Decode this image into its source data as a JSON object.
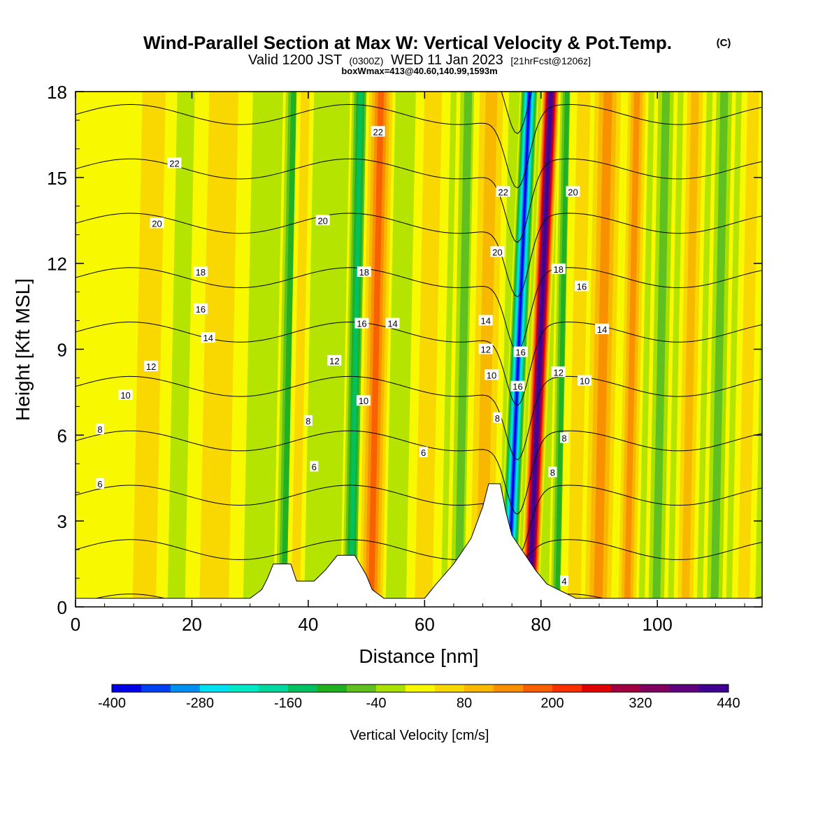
{
  "titles": {
    "main": "Wind-Parallel Section at Max W: Vertical Velocity & Pot.Temp.",
    "main_suffix": "(C)",
    "valid_prefix": "Valid 1200 JST",
    "valid_zulu": "(0300Z)",
    "valid_date": "WED 11 Jan 2023",
    "valid_fcst": "[21hrFcst@1206z]",
    "box_info": "boxWmax=413@40.60,140.99,1593m"
  },
  "axes": {
    "xlabel": "Distance [nm]",
    "ylabel": "Height [Kft MSL]",
    "xlim": [
      0,
      118
    ],
    "ylim": [
      0,
      18
    ],
    "xticks": [
      "0",
      "20",
      "40",
      "60",
      "80",
      "100"
    ],
    "yticks": [
      "0",
      "3",
      "6",
      "9",
      "12",
      "15",
      "18"
    ]
  },
  "colorbar": {
    "title": "Vertical Velocity [cm/s]",
    "labels": [
      "-400",
      "-280",
      "-160",
      "-40",
      "80",
      "200",
      "320",
      "440"
    ],
    "colors": [
      "#0000e6",
      "#0040f0",
      "#0090f0",
      "#00e0f0",
      "#00e8c8",
      "#00d8a0",
      "#00c060",
      "#20b020",
      "#60c020",
      "#a8e000",
      "#f8f800",
      "#f8d800",
      "#f8b800",
      "#f89000",
      "#f86000",
      "#f83000",
      "#e00000",
      "#a00040",
      "#800060",
      "#600080",
      "#400090"
    ]
  },
  "chart_data": {
    "type": "heatmap",
    "field": "Vertical Velocity [cm/s]",
    "contours": "Potential Temperature [C]",
    "xlim": [
      0,
      118
    ],
    "ylim": [
      0,
      18
    ],
    "terrain_kft": [
      [
        0,
        0
      ],
      [
        30,
        0
      ],
      [
        32,
        0.3
      ],
      [
        33,
        0.7
      ],
      [
        34,
        1.2
      ],
      [
        37,
        1.2
      ],
      [
        38,
        0.6
      ],
      [
        41,
        0.6
      ],
      [
        43,
        1.0
      ],
      [
        45,
        1.5
      ],
      [
        48,
        1.5
      ],
      [
        50,
        0.8
      ],
      [
        51,
        0.3
      ],
      [
        53,
        0
      ],
      [
        60,
        0
      ],
      [
        62,
        0.5
      ],
      [
        65,
        1.2
      ],
      [
        68,
        2.1
      ],
      [
        70,
        3.2
      ],
      [
        71,
        4.0
      ],
      [
        73,
        4.0
      ],
      [
        74,
        3.0
      ],
      [
        75,
        2.2
      ],
      [
        77,
        1.6
      ],
      [
        79,
        1.0
      ],
      [
        81,
        0.5
      ],
      [
        83,
        0.3
      ],
      [
        86,
        0
      ],
      [
        118,
        0
      ]
    ],
    "w_bands": [
      {
        "x": 4,
        "w": 6,
        "value": 0
      },
      {
        "x": 12,
        "w": 4,
        "value": 20
      },
      {
        "x": 24,
        "w": 5,
        "value": 20
      },
      {
        "x": 36,
        "w": 1.8,
        "value": -120
      },
      {
        "x": 38,
        "w": 1.5,
        "value": 40
      },
      {
        "x": 47.5,
        "w": 1.8,
        "value": -140
      },
      {
        "x": 51,
        "w": 2.5,
        "value": 140
      },
      {
        "x": 60,
        "w": 3,
        "value": 40
      },
      {
        "x": 66,
        "w": 2,
        "value": -60
      },
      {
        "x": 70,
        "w": 3,
        "value": 80
      },
      {
        "x": 74.5,
        "w": 1.6,
        "value": -400,
        "tilt": true
      },
      {
        "x": 78.2,
        "w": 1.6,
        "value": 413,
        "tilt": true
      },
      {
        "x": 83,
        "w": 1.5,
        "value": -120
      },
      {
        "x": 86,
        "w": 2.5,
        "value": 40
      },
      {
        "x": 90,
        "w": 3,
        "value": 120
      },
      {
        "x": 95,
        "w": 2,
        "value": 100
      },
      {
        "x": 100,
        "w": 2,
        "value": -80
      },
      {
        "x": 105,
        "w": 2,
        "value": 80
      },
      {
        "x": 110,
        "w": 2,
        "value": -60
      },
      {
        "x": 115,
        "w": 2,
        "value": 20
      }
    ],
    "theta_labels": [
      {
        "x": 4.2,
        "y": 4.3,
        "text": "6"
      },
      {
        "x": 4.2,
        "y": 6.2,
        "text": "8"
      },
      {
        "x": 8.6,
        "y": 7.4,
        "text": "10"
      },
      {
        "x": 13,
        "y": 8.4,
        "text": "12"
      },
      {
        "x": 22.8,
        "y": 9.4,
        "text": "14"
      },
      {
        "x": 21.5,
        "y": 10.4,
        "text": "16"
      },
      {
        "x": 21.5,
        "y": 11.7,
        "text": "18"
      },
      {
        "x": 14,
        "y": 13.4,
        "text": "20"
      },
      {
        "x": 17,
        "y": 15.5,
        "text": "22"
      },
      {
        "x": 41,
        "y": 4.9,
        "text": "6"
      },
      {
        "x": 40,
        "y": 6.5,
        "text": "8"
      },
      {
        "x": 49.5,
        "y": 7.2,
        "text": "10"
      },
      {
        "x": 44.5,
        "y": 8.6,
        "text": "12"
      },
      {
        "x": 54.5,
        "y": 9.9,
        "text": "14"
      },
      {
        "x": 49.2,
        "y": 9.9,
        "text": "16"
      },
      {
        "x": 49.6,
        "y": 11.7,
        "text": "18"
      },
      {
        "x": 42.5,
        "y": 13.5,
        "text": "20"
      },
      {
        "x": 52,
        "y": 16.6,
        "text": "22"
      },
      {
        "x": 59.8,
        "y": 5.4,
        "text": "6"
      },
      {
        "x": 72.5,
        "y": 6.6,
        "text": "8"
      },
      {
        "x": 71.5,
        "y": 8.1,
        "text": "10"
      },
      {
        "x": 70.5,
        "y": 9.0,
        "text": "12"
      },
      {
        "x": 70.5,
        "y": 10.0,
        "text": "14"
      },
      {
        "x": 76,
        "y": 7.7,
        "text": "16"
      },
      {
        "x": 76.5,
        "y": 8.9,
        "text": "16"
      },
      {
        "x": 72.5,
        "y": 12.4,
        "text": "20"
      },
      {
        "x": 73.5,
        "y": 14.5,
        "text": "22"
      },
      {
        "x": 84,
        "y": 0.9,
        "text": "4"
      },
      {
        "x": 82,
        "y": 4.7,
        "text": "8"
      },
      {
        "x": 84,
        "y": 5.9,
        "text": "8"
      },
      {
        "x": 83,
        "y": 8.2,
        "text": "12"
      },
      {
        "x": 87.5,
        "y": 7.9,
        "text": "10"
      },
      {
        "x": 90.5,
        "y": 9.7,
        "text": "14"
      },
      {
        "x": 87,
        "y": 11.2,
        "text": "16"
      },
      {
        "x": 83,
        "y": 11.8,
        "text": "18"
      },
      {
        "x": 85.5,
        "y": 14.5,
        "text": "20"
      }
    ]
  }
}
